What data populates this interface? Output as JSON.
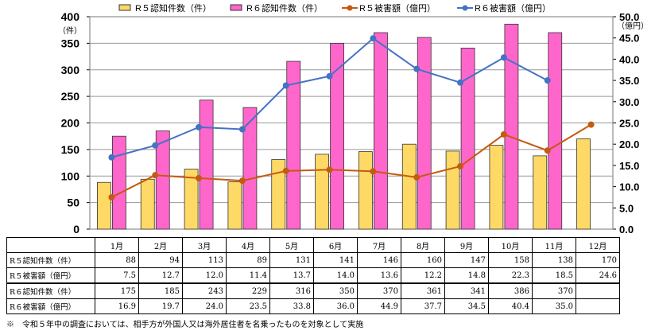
{
  "chart_data": {
    "type": "bar+line",
    "categories": [
      "1月",
      "2月",
      "3月",
      "4月",
      "5月",
      "6月",
      "7月",
      "8月",
      "9月",
      "10月",
      "11月",
      "12月"
    ],
    "series": [
      {
        "name": "R５認知件数（件）",
        "type": "bar",
        "axis": "left",
        "color": "#FFD966",
        "values": [
          88,
          94,
          113,
          89,
          131,
          141,
          146,
          160,
          147,
          158,
          138,
          170
        ]
      },
      {
        "name": "R６認知件数（件）",
        "type": "bar",
        "axis": "left",
        "color": "#FF66CC",
        "values": [
          175,
          185,
          243,
          229,
          316,
          350,
          370,
          361,
          341,
          386,
          370,
          null
        ]
      },
      {
        "name": "R５被害額（億円）",
        "type": "line",
        "axis": "right",
        "color": "#C55A11",
        "values": [
          7.5,
          12.7,
          12.0,
          11.4,
          13.7,
          14.0,
          13.6,
          12.2,
          14.8,
          22.3,
          18.5,
          24.6
        ]
      },
      {
        "name": "R６被害額（億円）",
        "type": "line",
        "axis": "right",
        "color": "#4472C4",
        "values": [
          16.9,
          19.7,
          24.0,
          23.5,
          33.8,
          36.0,
          44.9,
          37.7,
          34.5,
          40.4,
          35.0,
          null
        ]
      }
    ],
    "ylim": [
      0,
      400
    ],
    "yticks": [
      "0",
      "50",
      "100",
      "150",
      "200",
      "250",
      "300",
      "350",
      "400"
    ],
    "ylabel": "（件）",
    "y2lim": [
      0,
      50
    ],
    "y2ticks": [
      "0.0",
      "5.0",
      "10.0",
      "15.0",
      "20.0",
      "25.0",
      "30.0",
      "35.0",
      "40.0",
      "45.0",
      "50.0"
    ],
    "y2label": "（億円）",
    "legend": "top"
  },
  "table": {
    "rows": [
      {
        "label": "R５認知件数（件）",
        "values": [
          "88",
          "94",
          "113",
          "89",
          "131",
          "141",
          "146",
          "160",
          "147",
          "158",
          "138",
          "170"
        ]
      },
      {
        "label": "R５被害額（億円）",
        "values": [
          "7.5",
          "12.7",
          "12.0",
          "11.4",
          "13.7",
          "14.0",
          "13.6",
          "12.2",
          "14.8",
          "22.3",
          "18.5",
          "24.6"
        ]
      },
      {
        "label": "R６認知件数（件）",
        "values": [
          "175",
          "185",
          "243",
          "229",
          "316",
          "350",
          "370",
          "361",
          "341",
          "386",
          "370",
          ""
        ]
      },
      {
        "label": "R６被害額（億円）",
        "values": [
          "16.9",
          "19.7",
          "24.0",
          "23.5",
          "33.8",
          "36.0",
          "44.9",
          "37.7",
          "34.5",
          "40.4",
          "35.0",
          ""
        ]
      }
    ]
  },
  "note": "※　令和５年中の調査においては、相手方が外国人又は海外居住者を名乗ったものを対象として実施"
}
